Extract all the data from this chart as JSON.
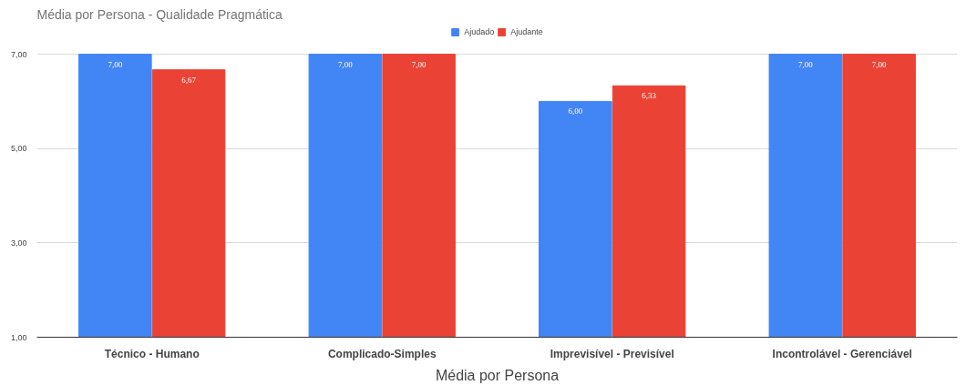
{
  "chart_data": {
    "type": "bar",
    "title": "Média por Persona - Qualidade Pragmática",
    "xlabel": "Média por Persona",
    "categories": [
      "Técnico - Humano",
      "Complicado-Simples",
      "Imprevisível - Previsível",
      "Incontrolável - Gerenciável"
    ],
    "series": [
      {
        "name": "Ajudado",
        "color": "#4285f4",
        "values": [
          7.0,
          7.0,
          6.0,
          7.0
        ],
        "value_labels": [
          "7,00",
          "7,00",
          "6,00",
          "7,00"
        ]
      },
      {
        "name": "Ajudante",
        "color": "#ea4335",
        "values": [
          6.67,
          7.0,
          6.33,
          7.0
        ],
        "value_labels": [
          "6,67",
          "7,00",
          "6,33",
          "7,00"
        ]
      }
    ],
    "ylim": [
      1,
      7
    ],
    "yticks": [
      {
        "value": 1,
        "label": "1,00"
      },
      {
        "value": 3,
        "label": "3,00"
      },
      {
        "value": 5,
        "label": "5,00"
      },
      {
        "value": 7,
        "label": "7,00"
      }
    ],
    "grid": "y",
    "legend": "top"
  }
}
